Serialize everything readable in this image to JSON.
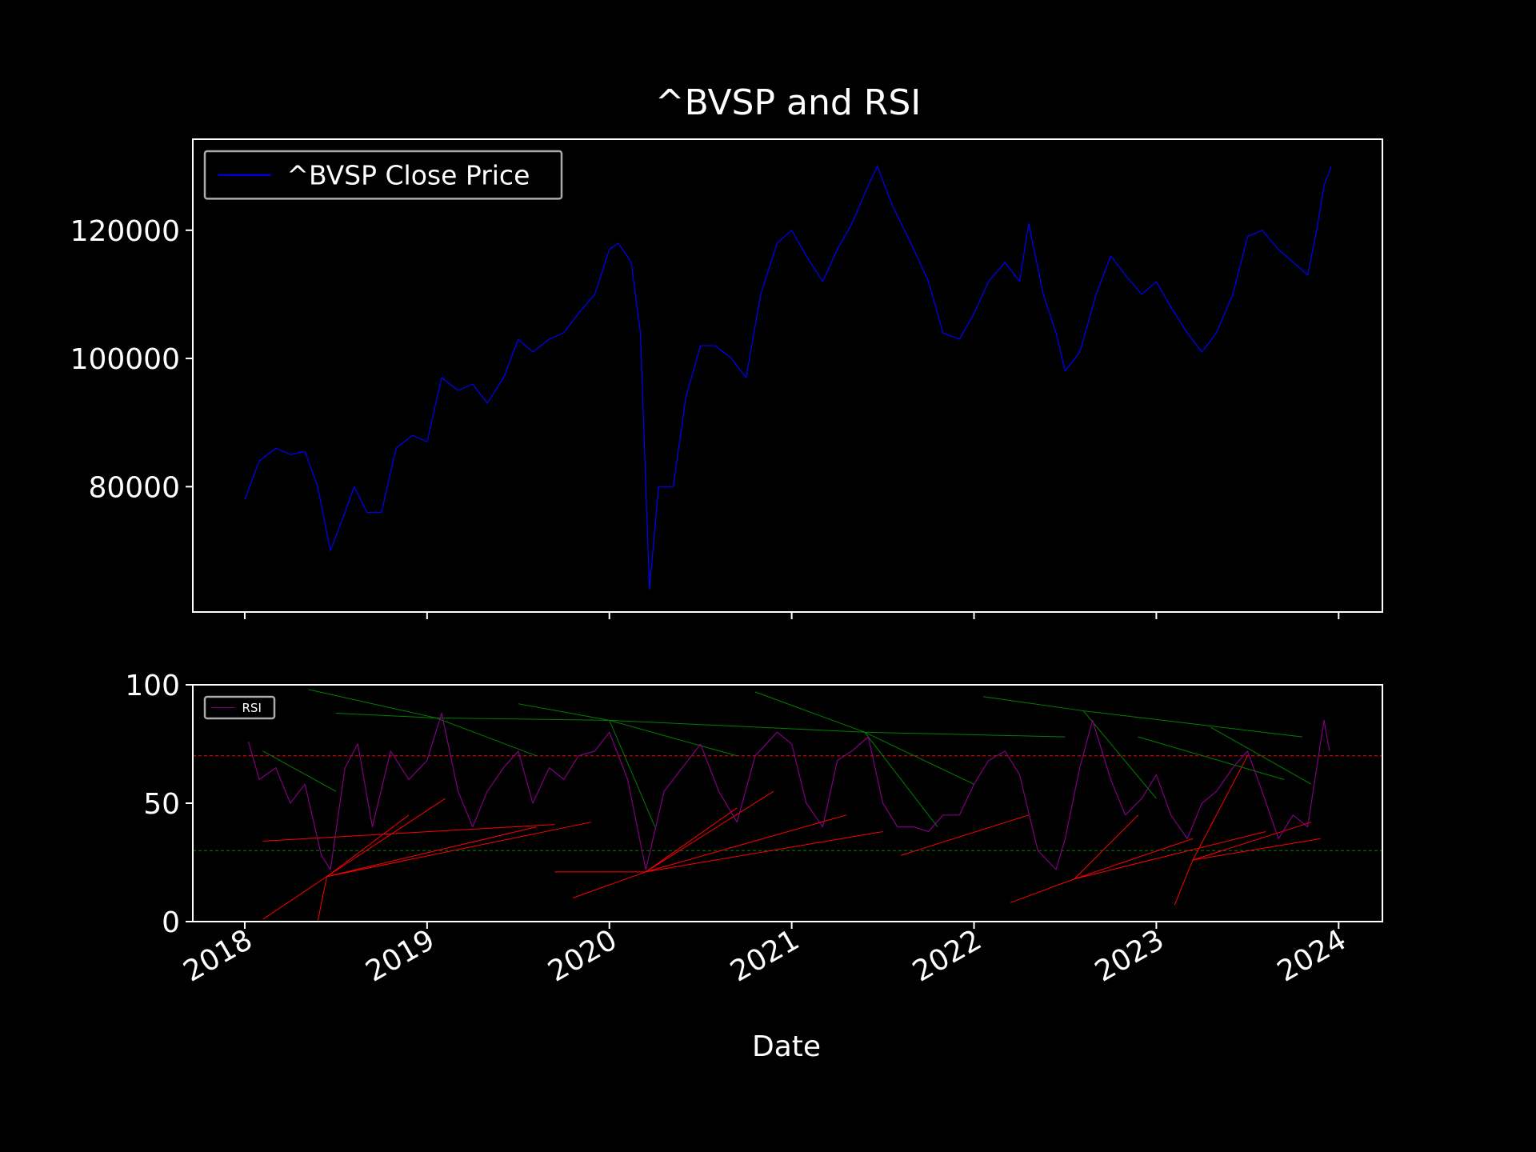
{
  "chart_data": [
    {
      "type": "line",
      "title": "^BVSP and RSI",
      "xlim": [
        2017.715,
        2024.24
      ],
      "xticks": [
        2018,
        2019,
        2020,
        2021,
        2022,
        2023,
        2024
      ],
      "show_xtick_labels": false,
      "ylim": [
        60450,
        134200
      ],
      "yticks": [
        80000,
        100000,
        120000
      ],
      "legend": "upper left",
      "series": [
        {
          "name": "^BVSP Close Price",
          "color": "#0000ff",
          "x": [
            2018.0,
            2018.08,
            2018.17,
            2018.25,
            2018.33,
            2018.4,
            2018.47,
            2018.55,
            2018.6,
            2018.67,
            2018.75,
            2018.83,
            2018.92,
            2019.0,
            2019.08,
            2019.17,
            2019.25,
            2019.33,
            2019.42,
            2019.5,
            2019.58,
            2019.67,
            2019.75,
            2019.83,
            2019.92,
            2020.0,
            2020.05,
            2020.12,
            2020.17,
            2020.2,
            2020.22,
            2020.27,
            2020.35,
            2020.42,
            2020.5,
            2020.58,
            2020.67,
            2020.75,
            2020.83,
            2020.92,
            2021.0,
            2021.08,
            2021.17,
            2021.25,
            2021.33,
            2021.42,
            2021.47,
            2021.55,
            2021.67,
            2021.75,
            2021.83,
            2021.92,
            2022.0,
            2022.08,
            2022.17,
            2022.25,
            2022.3,
            2022.38,
            2022.45,
            2022.5,
            2022.58,
            2022.67,
            2022.75,
            2022.83,
            2022.92,
            2023.0,
            2023.08,
            2023.17,
            2023.25,
            2023.33,
            2023.42,
            2023.5,
            2023.58,
            2023.67,
            2023.75,
            2023.83,
            2023.88,
            2023.92,
            2023.96
          ],
          "values": [
            78000,
            84000,
            86000,
            85000,
            85500,
            80000,
            70000,
            76000,
            80000,
            76000,
            76000,
            86000,
            88000,
            87000,
            97000,
            95000,
            96000,
            93000,
            97000,
            103000,
            101000,
            103000,
            104000,
            107000,
            110000,
            117000,
            118000,
            115000,
            104000,
            80000,
            64000,
            80000,
            80000,
            94000,
            102000,
            102000,
            100000,
            97000,
            110000,
            118000,
            120000,
            116000,
            112000,
            117000,
            121000,
            127000,
            130000,
            124000,
            117000,
            112000,
            104000,
            103000,
            107000,
            112000,
            115000,
            112000,
            121000,
            110000,
            104000,
            98000,
            101000,
            110000,
            116000,
            113000,
            110000,
            112000,
            108000,
            104000,
            101000,
            104000,
            110000,
            119000,
            120000,
            117000,
            115000,
            113000,
            120000,
            127000,
            130000
          ]
        }
      ]
    },
    {
      "type": "line",
      "xlabel": "Date",
      "xlim": [
        2017.715,
        2024.24
      ],
      "xticks": [
        2018,
        2019,
        2020,
        2021,
        2022,
        2023,
        2024
      ],
      "show_xtick_labels": true,
      "ylim": [
        0,
        100
      ],
      "yticks": [
        0,
        50,
        100
      ],
      "legend": "upper left",
      "hlines": [
        {
          "value": 70,
          "color": "#ff0000"
        },
        {
          "value": 30,
          "color": "#008000"
        }
      ],
      "series": [
        {
          "name": "RSI",
          "color": "#800080",
          "x": [
            2018.02,
            2018.08,
            2018.17,
            2018.25,
            2018.33,
            2018.42,
            2018.47,
            2018.55,
            2018.62,
            2018.7,
            2018.8,
            2018.9,
            2019.0,
            2019.08,
            2019.17,
            2019.25,
            2019.33,
            2019.42,
            2019.5,
            2019.58,
            2019.67,
            2019.75,
            2019.83,
            2019.92,
            2020.0,
            2020.1,
            2020.2,
            2020.3,
            2020.4,
            2020.5,
            2020.6,
            2020.7,
            2020.8,
            2020.92,
            2021.0,
            2021.08,
            2021.17,
            2021.25,
            2021.33,
            2021.42,
            2021.5,
            2021.58,
            2021.67,
            2021.75,
            2021.83,
            2021.92,
            2022.0,
            2022.08,
            2022.17,
            2022.25,
            2022.35,
            2022.45,
            2022.5,
            2022.58,
            2022.65,
            2022.75,
            2022.83,
            2022.92,
            2023.0,
            2023.08,
            2023.17,
            2023.25,
            2023.33,
            2023.42,
            2023.5,
            2023.58,
            2023.67,
            2023.75,
            2023.83,
            2023.92,
            2023.95
          ],
          "values": [
            76,
            60,
            65,
            50,
            58,
            28,
            22,
            65,
            75,
            40,
            72,
            60,
            68,
            88,
            55,
            40,
            55,
            65,
            72,
            50,
            65,
            60,
            70,
            72,
            80,
            60,
            22,
            55,
            65,
            75,
            55,
            42,
            70,
            80,
            75,
            50,
            40,
            68,
            72,
            78,
            50,
            40,
            40,
            38,
            45,
            45,
            58,
            68,
            72,
            62,
            30,
            22,
            35,
            65,
            85,
            60,
            45,
            52,
            62,
            45,
            35,
            50,
            55,
            65,
            72,
            55,
            35,
            45,
            40,
            85,
            72
          ]
        }
      ],
      "trendlines": [
        {
          "color": "#ff0000",
          "x": [
            2018.1,
            2018.45
          ],
          "y": [
            1,
            19
          ]
        },
        {
          "color": "#ff0000",
          "x": [
            2018.45,
            2019.6
          ],
          "y": [
            19,
            40
          ]
        },
        {
          "color": "#ff0000",
          "x": [
            2018.45,
            2019.1
          ],
          "y": [
            19,
            52
          ]
        },
        {
          "color": "#ff0000",
          "x": [
            2018.45,
            2018.9
          ],
          "y": [
            19,
            45
          ]
        },
        {
          "color": "#ff0000",
          "x": [
            2018.45,
            2019.9
          ],
          "y": [
            19,
            42
          ]
        },
        {
          "color": "#ff0000",
          "x": [
            2018.4,
            2018.45
          ],
          "y": [
            0,
            19
          ]
        },
        {
          "color": "#ff0000",
          "x": [
            2018.1,
            2019.7
          ],
          "y": [
            34,
            41
          ]
        },
        {
          "color": "#ff0000",
          "x": [
            2019.7,
            2020.2
          ],
          "y": [
            21,
            21
          ]
        },
        {
          "color": "#ff0000",
          "x": [
            2019.8,
            2020.2
          ],
          "y": [
            10,
            21
          ]
        },
        {
          "color": "#ff0000",
          "x": [
            2020.2,
            2020.9
          ],
          "y": [
            21,
            55
          ]
        },
        {
          "color": "#ff0000",
          "x": [
            2020.2,
            2021.5
          ],
          "y": [
            21,
            38
          ]
        },
        {
          "color": "#ff0000",
          "x": [
            2020.2,
            2021.3
          ],
          "y": [
            21,
            45
          ]
        },
        {
          "color": "#ff0000",
          "x": [
            2020.2,
            2020.7
          ],
          "y": [
            21,
            48
          ]
        },
        {
          "color": "#ff0000",
          "x": [
            2021.6,
            2022.3
          ],
          "y": [
            28,
            45
          ]
        },
        {
          "color": "#ff0000",
          "x": [
            2022.2,
            2022.55
          ],
          "y": [
            8,
            18
          ]
        },
        {
          "color": "#ff0000",
          "x": [
            2022.55,
            2023.2
          ],
          "y": [
            18,
            35
          ]
        },
        {
          "color": "#ff0000",
          "x": [
            2022.55,
            2022.9
          ],
          "y": [
            18,
            45
          ]
        },
        {
          "color": "#ff0000",
          "x": [
            2022.55,
            2023.6
          ],
          "y": [
            18,
            38
          ]
        },
        {
          "color": "#ff0000",
          "x": [
            2023.1,
            2023.2
          ],
          "y": [
            7,
            26
          ]
        },
        {
          "color": "#ff0000",
          "x": [
            2023.2,
            2023.5
          ],
          "y": [
            26,
            70
          ]
        },
        {
          "color": "#ff0000",
          "x": [
            2023.2,
            2023.85
          ],
          "y": [
            26,
            42
          ]
        },
        {
          "color": "#ff0000",
          "x": [
            2023.2,
            2023.9
          ],
          "y": [
            26,
            35
          ]
        },
        {
          "color": "#008000",
          "x": [
            2018.1,
            2018.5
          ],
          "y": [
            72,
            55
          ]
        },
        {
          "color": "#008000",
          "x": [
            2018.5,
            2019.05
          ],
          "y": [
            88,
            86
          ]
        },
        {
          "color": "#008000",
          "x": [
            2018.35,
            2019.05
          ],
          "y": [
            98,
            86
          ]
        },
        {
          "color": "#008000",
          "x": [
            2019.05,
            2020.0
          ],
          "y": [
            86,
            85
          ]
        },
        {
          "color": "#008000",
          "x": [
            2019.05,
            2019.6
          ],
          "y": [
            86,
            70
          ]
        },
        {
          "color": "#008000",
          "x": [
            2019.5,
            2020.0
          ],
          "y": [
            92,
            85
          ]
        },
        {
          "color": "#008000",
          "x": [
            2020.0,
            2021.4
          ],
          "y": [
            85,
            80
          ]
        },
        {
          "color": "#008000",
          "x": [
            2020.0,
            2020.7
          ],
          "y": [
            85,
            70
          ]
        },
        {
          "color": "#008000",
          "x": [
            2020.0,
            2020.25
          ],
          "y": [
            85,
            40
          ]
        },
        {
          "color": "#008000",
          "x": [
            2020.8,
            2021.4
          ],
          "y": [
            97,
            80
          ]
        },
        {
          "color": "#008000",
          "x": [
            2021.4,
            2022.5
          ],
          "y": [
            80,
            78
          ]
        },
        {
          "color": "#008000",
          "x": [
            2021.4,
            2021.8
          ],
          "y": [
            80,
            40
          ]
        },
        {
          "color": "#008000",
          "x": [
            2021.4,
            2022.0
          ],
          "y": [
            80,
            58
          ]
        },
        {
          "color": "#008000",
          "x": [
            2022.05,
            2022.6
          ],
          "y": [
            95,
            89
          ]
        },
        {
          "color": "#008000",
          "x": [
            2022.6,
            2023.8
          ],
          "y": [
            89,
            78
          ]
        },
        {
          "color": "#008000",
          "x": [
            2022.6,
            2023.0
          ],
          "y": [
            89,
            52
          ]
        },
        {
          "color": "#008000",
          "x": [
            2022.9,
            2023.7
          ],
          "y": [
            78,
            60
          ]
        },
        {
          "color": "#008000",
          "x": [
            2023.3,
            2023.85
          ],
          "y": [
            82,
            58
          ]
        }
      ]
    }
  ]
}
